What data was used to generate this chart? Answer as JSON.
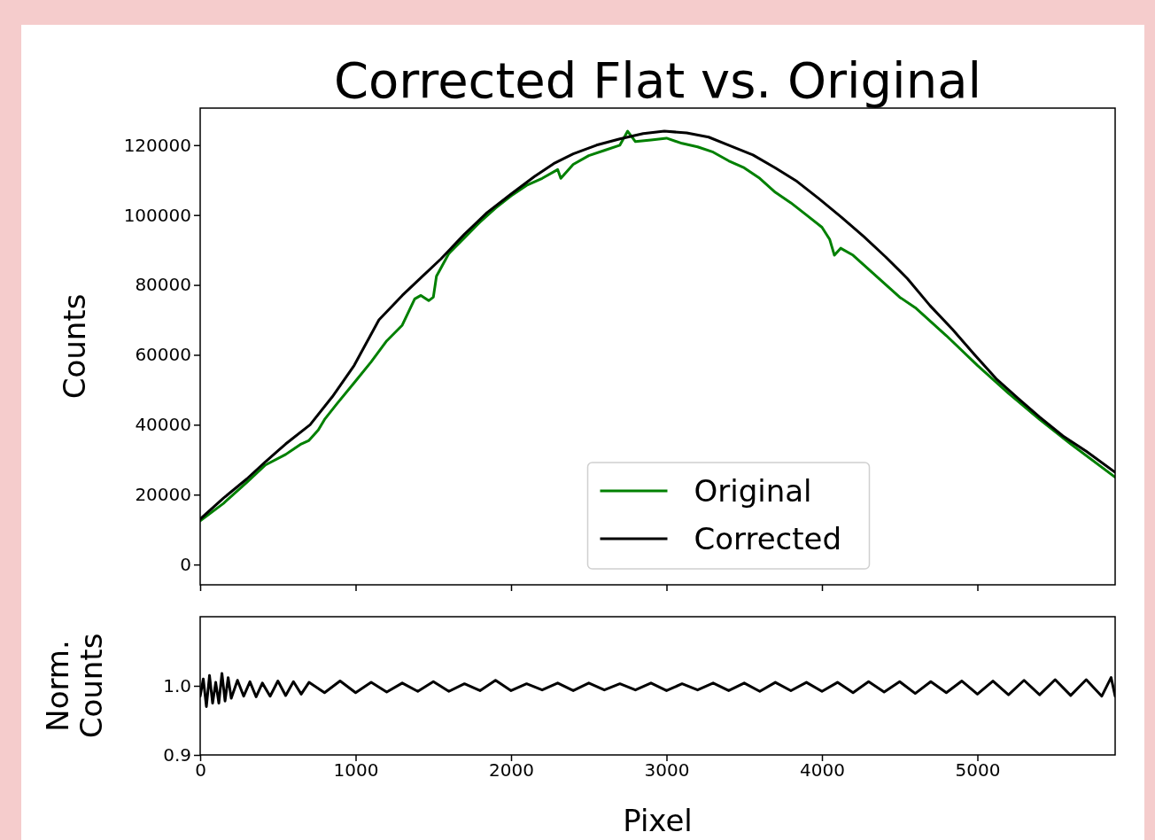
{
  "chart_data": [
    {
      "type": "line",
      "title": "Corrected Flat vs. Original",
      "ylabel": "Counts",
      "xlim": [
        0,
        5886
      ],
      "ylim": [
        -5800,
        130600
      ],
      "xticks": [
        {
          "value": 0,
          "label": null
        },
        {
          "value": 1000,
          "label": null
        },
        {
          "value": 2000,
          "label": null
        },
        {
          "value": 3000,
          "label": null
        },
        {
          "value": 4000,
          "label": null
        },
        {
          "value": 5000,
          "label": null
        }
      ],
      "yticks": [
        0,
        20000,
        40000,
        60000,
        80000,
        100000,
        120000
      ],
      "tick_labels": "y",
      "legend": "bottom",
      "series": [
        {
          "name": "Original",
          "color": "#008000",
          "x": [
            0,
            150,
            300,
            420,
            550,
            650,
            700,
            760,
            800,
            880,
            1000,
            1100,
            1200,
            1300,
            1380,
            1420,
            1470,
            1500,
            1520,
            1600,
            1700,
            1800,
            1900,
            2000,
            2100,
            2200,
            2300,
            2320,
            2400,
            2500,
            2600,
            2700,
            2750,
            2800,
            2900,
            3000,
            3100,
            3200,
            3300,
            3400,
            3500,
            3600,
            3700,
            3800,
            3900,
            4000,
            4050,
            4080,
            4120,
            4200,
            4300,
            4400,
            4500,
            4600,
            4800,
            5000,
            5200,
            5400,
            5600,
            5886
          ],
          "values": [
            12500,
            17500,
            23500,
            28500,
            31500,
            34500,
            35500,
            38500,
            41500,
            46000,
            52500,
            58000,
            64000,
            68500,
            76000,
            77000,
            75500,
            76500,
            82500,
            89000,
            93500,
            98000,
            102000,
            105500,
            108500,
            110500,
            113000,
            110500,
            114500,
            117000,
            118500,
            120000,
            124000,
            121000,
            121500,
            122000,
            120500,
            119500,
            118000,
            115500,
            113500,
            110500,
            106500,
            103500,
            100000,
            96500,
            93000,
            88500,
            90500,
            88500,
            84500,
            80500,
            76500,
            73500,
            65500,
            57000,
            49000,
            41500,
            34500,
            25000
          ]
        },
        {
          "name": "Corrected",
          "color": "#000000",
          "x": [
            0,
            150,
            300,
            422,
            550,
            707,
            850,
            991,
            1150,
            1300,
            1419,
            1550,
            1700,
            1846,
            2000,
            2150,
            2274,
            2400,
            2550,
            2700,
            2850,
            2986,
            3130,
            3271,
            3400,
            3556,
            3700,
            3840,
            3980,
            4125,
            4270,
            4410,
            4550,
            4695,
            4840,
            4980,
            5120,
            5265,
            5400,
            5550,
            5700,
            5886
          ],
          "values": [
            13000,
            19000,
            24500,
            29500,
            34500,
            40000,
            48000,
            57000,
            70000,
            77000,
            82000,
            87500,
            94500,
            100700,
            106000,
            111000,
            114700,
            117500,
            120000,
            121800,
            123300,
            124000,
            123500,
            122300,
            120000,
            117200,
            113500,
            109600,
            104700,
            99400,
            93800,
            88000,
            81800,
            74100,
            67300,
            60100,
            53200,
            47400,
            42200,
            36800,
            32400,
            26400
          ]
        }
      ]
    },
    {
      "type": "line",
      "xlabel": "Pixel",
      "ylabel": "Norm.\nCounts",
      "xlim": [
        0,
        5886
      ],
      "ylim": [
        0.9,
        1.1
      ],
      "xticks": [
        0,
        1000,
        2000,
        3000,
        4000,
        5000
      ],
      "yticks": [
        0.9,
        {
          "value": 1.0,
          "label": "1.0"
        }
      ],
      "series": [
        {
          "color": "#000000",
          "x": [
            0,
            20,
            40,
            60,
            80,
            100,
            120,
            140,
            160,
            180,
            200,
            240,
            280,
            320,
            360,
            400,
            450,
            500,
            550,
            600,
            650,
            700,
            800,
            900,
            1000,
            1100,
            1200,
            1300,
            1400,
            1500,
            1600,
            1700,
            1800,
            1900,
            2000,
            2100,
            2200,
            2300,
            2400,
            2500,
            2600,
            2700,
            2800,
            2900,
            3000,
            3100,
            3200,
            3300,
            3400,
            3500,
            3600,
            3700,
            3800,
            3900,
            4000,
            4100,
            4200,
            4300,
            4400,
            4500,
            4600,
            4700,
            4800,
            4900,
            5000,
            5100,
            5200,
            5300,
            5400,
            5500,
            5600,
            5700,
            5800,
            5860,
            5886
          ],
          "values": [
            0.985,
            1.01,
            0.97,
            1.015,
            0.975,
            1.005,
            0.975,
            1.018,
            0.978,
            1.012,
            0.982,
            1.008,
            0.985,
            1.006,
            0.984,
            1.004,
            0.985,
            1.007,
            0.986,
            1.006,
            0.988,
            1.005,
            0.99,
            1.007,
            0.99,
            1.005,
            0.991,
            1.004,
            0.992,
            1.006,
            0.992,
            1.003,
            0.993,
            1.008,
            0.993,
            1.003,
            0.994,
            1.004,
            0.993,
            1.004,
            0.994,
            1.003,
            0.994,
            1.004,
            0.993,
            1.003,
            0.994,
            1.004,
            0.993,
            1.004,
            0.992,
            1.005,
            0.993,
            1.005,
            0.992,
            1.005,
            0.99,
            1.006,
            0.991,
            1.006,
            0.989,
            1.006,
            0.99,
            1.007,
            0.988,
            1.007,
            0.987,
            1.008,
            0.987,
            1.009,
            0.986,
            1.009,
            0.985,
            1.012,
            0.985
          ]
        }
      ]
    }
  ]
}
